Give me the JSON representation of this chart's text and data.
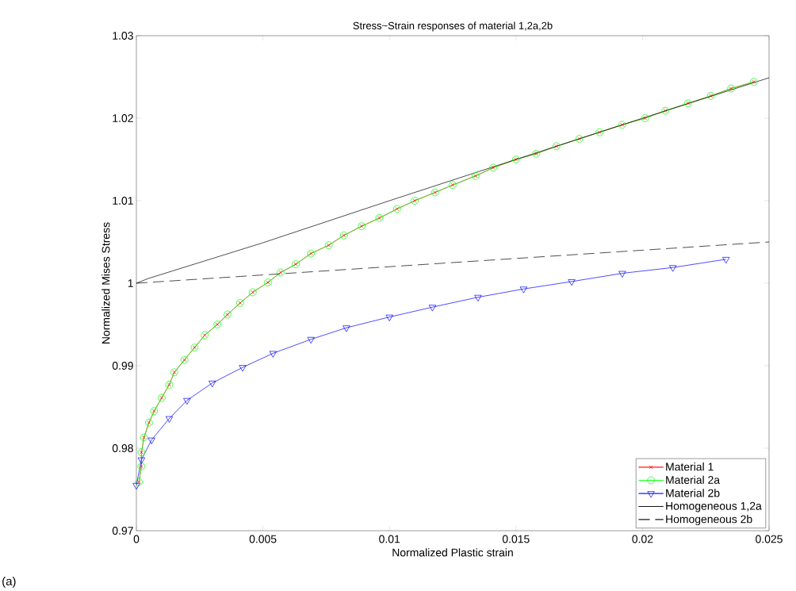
{
  "chart_data": {
    "type": "line",
    "title": "Stress~Strain responses of material 1,2a,2b",
    "xlabel": "Normalized Plastic strain",
    "ylabel": "Normalized Mises Stress",
    "xlim": [
      0,
      0.025
    ],
    "ylim": [
      0.97,
      1.03
    ],
    "xticks": [
      0,
      0.005,
      0.01,
      0.015,
      0.02,
      0.025
    ],
    "yticks": [
      0.97,
      0.98,
      0.99,
      1,
      1.01,
      1.02,
      1.03
    ],
    "grid": false,
    "legend": "bottom right",
    "annotations": [
      "(a)"
    ],
    "series": [
      {
        "name": "Material 1",
        "color": "#ff0000",
        "marker": "cross",
        "line_style": "solid",
        "x": [
          0.0001,
          0.0002,
          0.0002,
          0.0003,
          0.0005,
          0.0007,
          0.001,
          0.0013,
          0.0015,
          0.0019,
          0.0023,
          0.0027,
          0.0032,
          0.0036,
          0.0041,
          0.0046,
          0.0052,
          0.0057,
          0.0063,
          0.0069,
          0.0076,
          0.0082,
          0.0089,
          0.0096,
          0.0103,
          0.011,
          0.0118,
          0.0125,
          0.0134,
          0.0141,
          0.015,
          0.0158,
          0.0166,
          0.0175,
          0.0183,
          0.0192,
          0.0201,
          0.0209,
          0.0218,
          0.0227,
          0.0235,
          0.0244
        ],
        "values": [
          0.9759,
          0.9778,
          0.9795,
          0.9813,
          0.9831,
          0.9845,
          0.9861,
          0.9877,
          0.9892,
          0.9907,
          0.9922,
          0.9937,
          0.995,
          0.9962,
          0.9976,
          0.9989,
          1.0001,
          1.0013,
          1.0023,
          1.0036,
          1.0046,
          1.0058,
          1.0069,
          1.0079,
          1.009,
          1.01,
          1.011,
          1.0119,
          1.013,
          1.014,
          1.015,
          1.0157,
          1.0166,
          1.0175,
          1.0183,
          1.0192,
          1.02,
          1.0209,
          1.0218,
          1.0227,
          1.0236,
          1.0244
        ]
      },
      {
        "name": "Material 2a",
        "color": "#00ff00",
        "marker": "circle",
        "line_style": "solid",
        "x": [
          0.0001,
          0.0002,
          0.0002,
          0.0003,
          0.0005,
          0.0007,
          0.001,
          0.0013,
          0.0015,
          0.0019,
          0.0023,
          0.0027,
          0.0032,
          0.0036,
          0.0041,
          0.0046,
          0.0052,
          0.0057,
          0.0063,
          0.0069,
          0.0076,
          0.0082,
          0.0089,
          0.0096,
          0.0103,
          0.011,
          0.0118,
          0.0125,
          0.0134,
          0.0141,
          0.015,
          0.0158,
          0.0166,
          0.0175,
          0.0183,
          0.0192,
          0.0201,
          0.0209,
          0.0218,
          0.0227,
          0.0235,
          0.0244
        ],
        "values": [
          0.9759,
          0.9778,
          0.9795,
          0.9813,
          0.9831,
          0.9845,
          0.9861,
          0.9877,
          0.9892,
          0.9907,
          0.9922,
          0.9937,
          0.995,
          0.9962,
          0.9976,
          0.9989,
          1.0001,
          1.0013,
          1.0023,
          1.0036,
          1.0046,
          1.0058,
          1.0069,
          1.0079,
          1.009,
          1.01,
          1.011,
          1.0119,
          1.013,
          1.014,
          1.015,
          1.0157,
          1.0166,
          1.0175,
          1.0183,
          1.0192,
          1.02,
          1.0209,
          1.0218,
          1.0227,
          1.0236,
          1.0244
        ]
      },
      {
        "name": "Material 2b",
        "color": "#0000ff",
        "marker": "triangle",
        "line_style": "solid",
        "x": [
          0.0,
          0.0002,
          0.0006,
          0.0013,
          0.002,
          0.003,
          0.0042,
          0.0054,
          0.0069,
          0.0083,
          0.01,
          0.0117,
          0.0135,
          0.0153,
          0.0172,
          0.0192,
          0.0212,
          0.0233
        ],
        "values": [
          0.9755,
          0.9786,
          0.981,
          0.9836,
          0.9858,
          0.9879,
          0.9898,
          0.9915,
          0.9932,
          0.9946,
          0.9959,
          0.9971,
          0.9983,
          0.9993,
          1.0002,
          1.0012,
          1.0019,
          1.0029
        ]
      },
      {
        "name": "Homogeneous 1,2a",
        "color": "#000000",
        "marker": "none",
        "line_style": "solid",
        "x": [
          0,
          0.0005,
          0.005,
          0.01,
          0.015,
          0.02,
          0.025
        ],
        "values": [
          1.0,
          1.0006,
          1.0049,
          1.01,
          1.015,
          1.02,
          1.0249
        ]
      },
      {
        "name": "Homogeneous 2b",
        "color": "#000000",
        "marker": "none",
        "line_style": "dashed",
        "x": [
          0,
          0.005,
          0.01,
          0.015,
          0.02,
          0.025
        ],
        "values": [
          1.0,
          1.001,
          1.002,
          1.003,
          1.004,
          1.005
        ]
      }
    ]
  }
}
